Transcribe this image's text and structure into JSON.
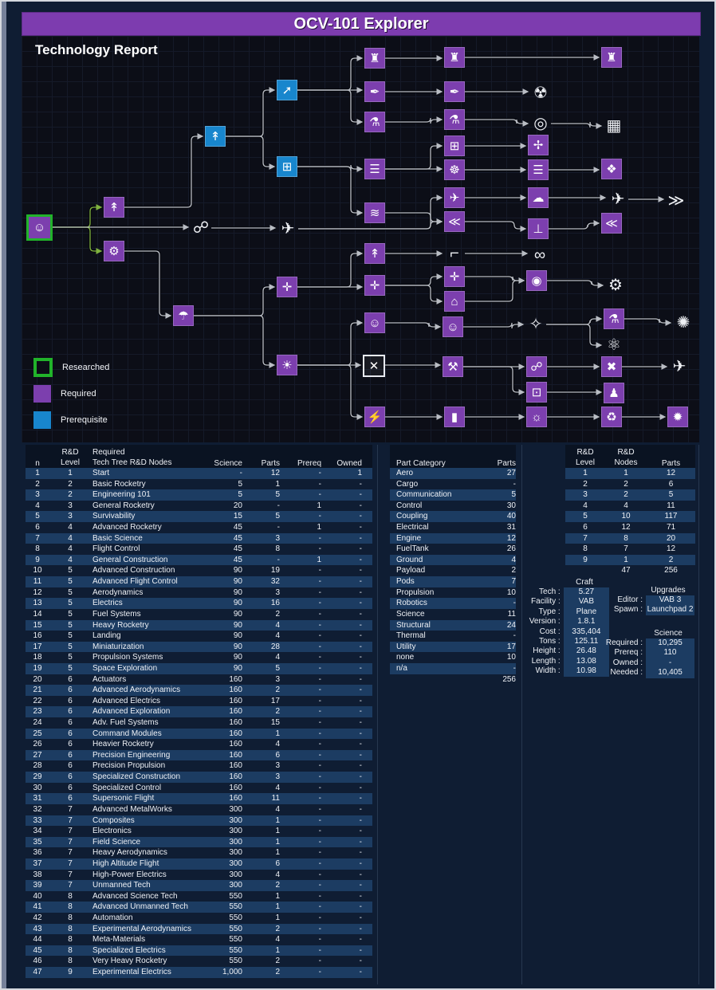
{
  "header": {
    "title": "OCV-101 Explorer"
  },
  "report_title": "Technology Report",
  "colors": {
    "purple": "#7c3fae",
    "blue": "#1886cd",
    "green": "#21b32a",
    "stripe": "#1c3c62",
    "tree_bg": "#0c0e17",
    "page_bg": "#0f1d33",
    "edge": "#b9bdc4",
    "edge_start": "#7fb23f"
  },
  "legend": [
    {
      "label": "Researched",
      "type": "researched"
    },
    {
      "label": "Required",
      "type": "required"
    },
    {
      "label": "Prerequisite",
      "type": "prerequisite"
    }
  ],
  "tree": {
    "nodes": [
      [
        "start",
        "kerbal-icon",
        "☺",
        34,
        270,
        "r"
      ],
      [
        "basic-rocketry",
        "rocket-icon",
        "↟",
        128,
        245,
        "p"
      ],
      [
        "engineering-101",
        "gears-icon",
        "⚙",
        128,
        300,
        "p"
      ],
      [
        "tracking-dish",
        "dish-icon",
        "☍",
        237,
        271,
        "w"
      ],
      [
        "general-rocketry",
        "rocket-icon",
        "↟",
        255,
        156,
        "b"
      ],
      [
        "survivability",
        "parachute-icon",
        "☂",
        215,
        381,
        "p"
      ],
      [
        "advanced-rocketry",
        "rocket-swoosh-icon",
        "➚",
        345,
        98,
        "b"
      ],
      [
        "general-construction",
        "girder-grid-icon",
        "⊞",
        345,
        194,
        "b"
      ],
      [
        "aviation-plane",
        "plane-icon",
        "✈",
        346,
        272,
        "w"
      ],
      [
        "flight-control",
        "gimbal-icon",
        "✛",
        345,
        345,
        "p"
      ],
      [
        "basic-science",
        "bulb-icon",
        "☀",
        345,
        443,
        "p"
      ],
      [
        "heavy-rocketry-tower",
        "launch-tower-icon",
        "♜",
        455,
        58,
        "p"
      ],
      [
        "propulsion-feather",
        "feather-icon",
        "✒",
        455,
        100,
        "p"
      ],
      [
        "fuel-systems",
        "fuel-hose-icon",
        "⚗",
        455,
        138,
        "p"
      ],
      [
        "construction-stack",
        "stack-icon",
        "☰",
        455,
        197,
        "p"
      ],
      [
        "aerodynamics",
        "airflow-icon",
        "≋",
        455,
        252,
        "p"
      ],
      [
        "space-exploration-rocket",
        "rocket-icon",
        "↟",
        455,
        303,
        "p"
      ],
      [
        "advanced-flight-control",
        "gimbal-icon",
        "✛",
        455,
        343,
        "p"
      ],
      [
        "command-modules-astronaut",
        "astronaut-icon",
        "☺",
        455,
        390,
        "p"
      ],
      [
        "miniaturization-box",
        "crossed-box-icon",
        "✕",
        453,
        443,
        "o"
      ],
      [
        "electrics",
        "lightning-icon",
        "⚡",
        455,
        508,
        "p"
      ],
      [
        "heavier-rocketry-tower",
        "launch-tower-icon",
        "♜",
        555,
        57,
        "p"
      ],
      [
        "precision-propulsion-feather",
        "feather-icon",
        "✒",
        555,
        100,
        "p"
      ],
      [
        "adv-fuel-systems-pump",
        "fuel-pump-icon",
        "⚗",
        555,
        135,
        "p"
      ],
      [
        "fuel-transfer-grid",
        "transfer-grid-icon",
        "⊞",
        555,
        168,
        "p"
      ],
      [
        "specialized-control-gyro",
        "gyro-icon",
        "☸",
        555,
        198,
        "p"
      ],
      [
        "supersonic-flight-plane",
        "jet-icon",
        "✈",
        555,
        233,
        "p"
      ],
      [
        "air-intake",
        "intake-icon",
        "≪",
        555,
        263,
        "p"
      ],
      [
        "landing-leg",
        "landing-leg-icon",
        "⌐",
        555,
        303,
        "w"
      ],
      [
        "vibration-gimbal",
        "gimbal-wave-icon",
        "✛",
        555,
        332,
        "p"
      ],
      [
        "command-dome",
        "dome-icon",
        "⌂",
        555,
        363,
        "p"
      ],
      [
        "ladder-astronaut",
        "ladder-astronaut-icon",
        "☺",
        553,
        395,
        "p"
      ],
      [
        "precision-engineering-caliper",
        "caliper-icon",
        "⚒",
        553,
        445,
        "p"
      ],
      [
        "advanced-electrics-battery",
        "battery-icon",
        "▮",
        555,
        508,
        "p"
      ],
      [
        "nuclear-fuel",
        "radiation-icon",
        "☢",
        663,
        102,
        "w"
      ],
      [
        "fuel-drum",
        "drum-icon",
        "◎",
        663,
        140,
        "w"
      ],
      [
        "drone-tech",
        "drone-icon",
        "✢",
        660,
        167,
        "p"
      ],
      [
        "composites-layers",
        "layers-icon",
        "☰",
        660,
        198,
        "p"
      ],
      [
        "high-altitude-plane",
        "plane-cloud-icon",
        "☁",
        660,
        233,
        "p"
      ],
      [
        "landing-runway",
        "runway-icon",
        "⊥",
        660,
        272,
        "p"
      ],
      [
        "wheels",
        "wheels-icon",
        "∞",
        662,
        305,
        "w"
      ],
      [
        "docking-port",
        "docking-port-icon",
        "◉",
        658,
        337,
        "p"
      ],
      [
        "telescope",
        "telescope-icon",
        "✧",
        657,
        392,
        "w"
      ],
      [
        "comms-antenna",
        "antenna-icon",
        "☍",
        658,
        445,
        "p"
      ],
      [
        "electronics-chip",
        "chip-icon",
        "⊡",
        658,
        477,
        "p"
      ],
      [
        "solar-panels",
        "solar-panel-icon",
        "☼",
        658,
        508,
        "p"
      ],
      [
        "very-heavy-rocketry-tower",
        "launch-tower-icon",
        "♜",
        752,
        57,
        "p"
      ],
      [
        "rover-truck",
        "truck-icon",
        "▦",
        755,
        143,
        "w"
      ],
      [
        "meta-materials-network",
        "network-icon",
        "❖",
        752,
        197,
        "p"
      ],
      [
        "vtol-jet",
        "vtol-icon",
        "✈",
        760,
        235,
        "w"
      ],
      [
        "advanced-intake",
        "intake-icon",
        "≪",
        752,
        265,
        "p"
      ],
      [
        "wheel-gear",
        "wheel-gear-icon",
        "⚙",
        757,
        343,
        "w"
      ],
      [
        "field-science-flask",
        "flask-icon",
        "⚗",
        755,
        385,
        "p"
      ],
      [
        "molecule-lab",
        "molecule-icon",
        "⚛",
        755,
        418,
        "w"
      ],
      [
        "experimental-aero-xwing",
        "x-wing-icon",
        "✖",
        752,
        445,
        "p"
      ],
      [
        "automation-robot",
        "robot-icon",
        "♟",
        755,
        478,
        "p"
      ],
      [
        "recycling-systems",
        "recycle-icon",
        "♻",
        752,
        508,
        "p"
      ],
      [
        "engine-nozzle",
        "nozzle-icon",
        "≫",
        833,
        237,
        "w"
      ],
      [
        "science-burst",
        "burst-icon",
        "✺",
        842,
        390,
        "w"
      ],
      [
        "experimental-dart",
        "dart-plane-icon",
        "✈",
        837,
        445,
        "w"
      ],
      [
        "experimental-electrics-spark",
        "spark-icon",
        "✹",
        835,
        508,
        "p"
      ]
    ],
    "edges": [
      [
        0,
        1,
        "g"
      ],
      [
        0,
        2,
        "g"
      ],
      [
        0,
        3
      ],
      [
        1,
        4
      ],
      [
        2,
        5
      ],
      [
        4,
        6
      ],
      [
        4,
        7
      ],
      [
        6,
        11
      ],
      [
        6,
        12
      ],
      [
        6,
        13
      ],
      [
        7,
        14
      ],
      [
        7,
        15
      ],
      [
        3,
        8
      ],
      [
        8,
        26
      ],
      [
        8,
        27
      ],
      [
        5,
        9
      ],
      [
        5,
        10
      ],
      [
        9,
        16
      ],
      [
        9,
        17
      ],
      [
        10,
        18
      ],
      [
        10,
        19
      ],
      [
        10,
        20
      ],
      [
        11,
        21
      ],
      [
        12,
        22
      ],
      [
        13,
        23
      ],
      [
        14,
        24
      ],
      [
        14,
        25
      ],
      [
        15,
        27
      ],
      [
        16,
        28
      ],
      [
        17,
        29
      ],
      [
        17,
        30
      ],
      [
        18,
        31
      ],
      [
        19,
        32
      ],
      [
        20,
        33
      ],
      [
        21,
        46
      ],
      [
        22,
        34
      ],
      [
        23,
        35
      ],
      [
        24,
        36
      ],
      [
        25,
        37
      ],
      [
        26,
        38
      ],
      [
        27,
        39
      ],
      [
        28,
        40
      ],
      [
        29,
        41
      ],
      [
        30,
        41
      ],
      [
        31,
        42
      ],
      [
        32,
        43
      ],
      [
        32,
        44
      ],
      [
        33,
        45
      ],
      [
        35,
        47
      ],
      [
        37,
        48
      ],
      [
        38,
        49
      ],
      [
        39,
        50
      ],
      [
        41,
        51
      ],
      [
        42,
        52
      ],
      [
        42,
        53
      ],
      [
        43,
        54
      ],
      [
        44,
        55
      ],
      [
        45,
        56
      ],
      [
        49,
        57
      ],
      [
        52,
        58
      ],
      [
        54,
        59
      ],
      [
        56,
        60
      ]
    ]
  },
  "nodes_table": {
    "headers": {
      "n": "n",
      "level_top": "R&D",
      "level_bot": "Level",
      "name_top": "Required",
      "name_bot": "Tech Tree R&D Nodes",
      "science": "Science",
      "parts": "Parts",
      "prereq": "Prereq",
      "owned": "Owned"
    },
    "rows": [
      [
        "1",
        "1",
        "Start",
        "-",
        "12",
        "-",
        "1"
      ],
      [
        "2",
        "2",
        "Basic Rocketry",
        "5",
        "1",
        "-",
        "-"
      ],
      [
        "3",
        "2",
        "Engineering 101",
        "5",
        "5",
        "-",
        "-"
      ],
      [
        "4",
        "3",
        "General Rocketry",
        "20",
        "-",
        "1",
        "-"
      ],
      [
        "5",
        "3",
        "Survivability",
        "15",
        "5",
        "-",
        "-"
      ],
      [
        "6",
        "4",
        "Advanced Rocketry",
        "45",
        "-",
        "1",
        "-"
      ],
      [
        "7",
        "4",
        "Basic Science",
        "45",
        "3",
        "-",
        "-"
      ],
      [
        "8",
        "4",
        "Flight Control",
        "45",
        "8",
        "-",
        "-"
      ],
      [
        "9",
        "4",
        "General Construction",
        "45",
        "-",
        "1",
        "-"
      ],
      [
        "10",
        "5",
        "Advanced Construction",
        "90",
        "19",
        "-",
        "-"
      ],
      [
        "11",
        "5",
        "Advanced Flight Control",
        "90",
        "32",
        "-",
        "-"
      ],
      [
        "12",
        "5",
        "Aerodynamics",
        "90",
        "3",
        "-",
        "-"
      ],
      [
        "13",
        "5",
        "Electrics",
        "90",
        "16",
        "-",
        "-"
      ],
      [
        "14",
        "5",
        "Fuel Systems",
        "90",
        "2",
        "-",
        "-"
      ],
      [
        "15",
        "5",
        "Heavy Rocketry",
        "90",
        "4",
        "-",
        "-"
      ],
      [
        "16",
        "5",
        "Landing",
        "90",
        "4",
        "-",
        "-"
      ],
      [
        "17",
        "5",
        "Miniaturization",
        "90",
        "28",
        "-",
        "-"
      ],
      [
        "18",
        "5",
        "Propulsion Systems",
        "90",
        "4",
        "-",
        "-"
      ],
      [
        "19",
        "5",
        "Space Exploration",
        "90",
        "5",
        "-",
        "-"
      ],
      [
        "20",
        "6",
        "Actuators",
        "160",
        "3",
        "-",
        "-"
      ],
      [
        "21",
        "6",
        "Advanced Aerodynamics",
        "160",
        "2",
        "-",
        "-"
      ],
      [
        "22",
        "6",
        "Advanced Electrics",
        "160",
        "17",
        "-",
        "-"
      ],
      [
        "23",
        "6",
        "Advanced Exploration",
        "160",
        "2",
        "-",
        "-"
      ],
      [
        "24",
        "6",
        "Adv. Fuel Systems",
        "160",
        "15",
        "-",
        "-"
      ],
      [
        "25",
        "6",
        "Command Modules",
        "160",
        "1",
        "-",
        "-"
      ],
      [
        "26",
        "6",
        "Heavier Rocketry",
        "160",
        "4",
        "-",
        "-"
      ],
      [
        "27",
        "6",
        "Precision Engineering",
        "160",
        "6",
        "-",
        "-"
      ],
      [
        "28",
        "6",
        "Precision Propulsion",
        "160",
        "3",
        "-",
        "-"
      ],
      [
        "29",
        "6",
        "Specialized Construction",
        "160",
        "3",
        "-",
        "-"
      ],
      [
        "30",
        "6",
        "Specialized Control",
        "160",
        "4",
        "-",
        "-"
      ],
      [
        "31",
        "6",
        "Supersonic Flight",
        "160",
        "11",
        "-",
        "-"
      ],
      [
        "32",
        "7",
        "Advanced MetalWorks",
        "300",
        "4",
        "-",
        "-"
      ],
      [
        "33",
        "7",
        "Composites",
        "300",
        "1",
        "-",
        "-"
      ],
      [
        "34",
        "7",
        "Electronics",
        "300",
        "1",
        "-",
        "-"
      ],
      [
        "35",
        "7",
        "Field Science",
        "300",
        "1",
        "-",
        "-"
      ],
      [
        "36",
        "7",
        "Heavy Aerodynamics",
        "300",
        "1",
        "-",
        "-"
      ],
      [
        "37",
        "7",
        "High Altitude Flight",
        "300",
        "6",
        "-",
        "-"
      ],
      [
        "38",
        "7",
        "High-Power Electrics",
        "300",
        "4",
        "-",
        "-"
      ],
      [
        "39",
        "7",
        "Unmanned Tech",
        "300",
        "2",
        "-",
        "-"
      ],
      [
        "40",
        "8",
        "Advanced Science Tech",
        "550",
        "1",
        "-",
        "-"
      ],
      [
        "41",
        "8",
        "Advanced Unmanned Tech",
        "550",
        "1",
        "-",
        "-"
      ],
      [
        "42",
        "8",
        "Automation",
        "550",
        "1",
        "-",
        "-"
      ],
      [
        "43",
        "8",
        "Experimental Aerodynamics",
        "550",
        "2",
        "-",
        "-"
      ],
      [
        "44",
        "8",
        "Meta-Materials",
        "550",
        "4",
        "-",
        "-"
      ],
      [
        "45",
        "8",
        "Specialized Electrics",
        "550",
        "1",
        "-",
        "-"
      ],
      [
        "46",
        "8",
        "Very Heavy Rocketry",
        "550",
        "2",
        "-",
        "-"
      ],
      [
        "47",
        "9",
        "Experimental Electrics",
        "1,000",
        "2",
        "-",
        "-"
      ]
    ]
  },
  "parts_table": {
    "headers": {
      "category": "Part Category",
      "parts": "Parts"
    },
    "rows": [
      [
        "Aero",
        "27"
      ],
      [
        "Cargo",
        "-"
      ],
      [
        "Communication",
        "5"
      ],
      [
        "Control",
        "30"
      ],
      [
        "Coupling",
        "40"
      ],
      [
        "Electrical",
        "31"
      ],
      [
        "Engine",
        "12"
      ],
      [
        "FuelTank",
        "26"
      ],
      [
        "Ground",
        "4"
      ],
      [
        "Payload",
        "2"
      ],
      [
        "Pods",
        "7"
      ],
      [
        "Propulsion",
        "10"
      ],
      [
        "Robotics",
        "-"
      ],
      [
        "Science",
        "11"
      ],
      [
        "Structural",
        "24"
      ],
      [
        "Thermal",
        "-"
      ],
      [
        "Utility",
        "17"
      ],
      [
        "none",
        "10"
      ],
      [
        "n/a",
        "-"
      ]
    ],
    "total": "256"
  },
  "levels_table": {
    "headers": {
      "level_top": "R&D",
      "level_bot": "Level",
      "nodes_top": "R&D",
      "nodes_bot": "Nodes",
      "parts": "Parts"
    },
    "rows": [
      [
        "1",
        "1",
        "12"
      ],
      [
        "2",
        "2",
        "6"
      ],
      [
        "3",
        "2",
        "5"
      ],
      [
        "4",
        "4",
        "11"
      ],
      [
        "5",
        "10",
        "117"
      ],
      [
        "6",
        "12",
        "71"
      ],
      [
        "7",
        "8",
        "20"
      ],
      [
        "8",
        "7",
        "12"
      ],
      [
        "9",
        "1",
        "2"
      ]
    ],
    "totals": {
      "nodes": "47",
      "parts": "256"
    }
  },
  "craft": {
    "title": "Craft",
    "fields": [
      {
        "label": "Tech :",
        "value": "5.27"
      },
      {
        "label": "Facility :",
        "value": "VAB"
      },
      {
        "label": "Type :",
        "value": "Plane"
      },
      {
        "label": "Version :",
        "value": "1.8.1"
      },
      {
        "label": "Cost :",
        "value": "335,404"
      },
      {
        "label": "Tons :",
        "value": "125.11"
      },
      {
        "label": "Height :",
        "value": "26.48"
      },
      {
        "label": "Length :",
        "value": "13.08"
      },
      {
        "label": "Width :",
        "value": "10.98"
      }
    ]
  },
  "upgrades": {
    "title": "Upgrades",
    "fields": [
      {
        "label": "Editor :",
        "value": "VAB 3"
      },
      {
        "label": "Spawn :",
        "value": "Launchpad 2"
      }
    ]
  },
  "science": {
    "title": "Science",
    "fields": [
      {
        "label": "Required :",
        "value": "10,295"
      },
      {
        "label": "Prereq :",
        "value": "110"
      },
      {
        "label": "Owned :",
        "value": "-"
      },
      {
        "label": "Needed :",
        "value": "10,405"
      }
    ]
  }
}
